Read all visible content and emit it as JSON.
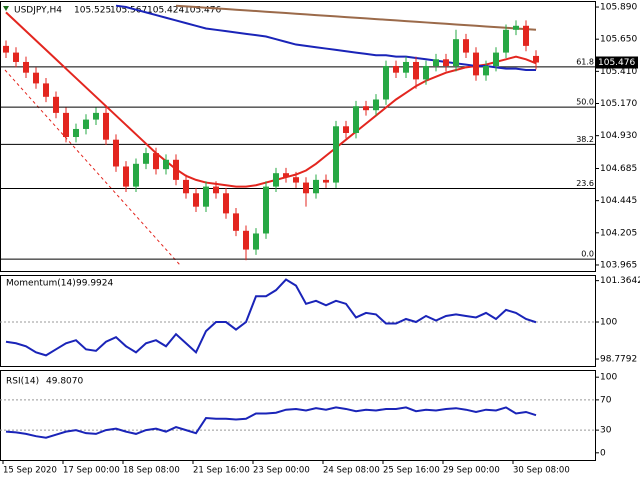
{
  "chart_data": [
    {
      "type": "candlestick",
      "title": "USDJPY,H4",
      "categories": [
        "15 Sep 2020",
        null,
        null,
        null,
        null,
        null,
        "17 Sep 00:00",
        null,
        null,
        null,
        null,
        null,
        "18 Sep 08:00",
        null,
        null,
        null,
        null,
        null,
        null,
        "21 Sep 16:00",
        null,
        null,
        null,
        null,
        null,
        "23 Sep 00:00",
        null,
        null,
        null,
        null,
        null,
        null,
        "24 Sep 08:00",
        null,
        null,
        null,
        null,
        null,
        "25 Sep 16:00",
        null,
        null,
        null,
        null,
        null,
        "29 Sep 00:00",
        null,
        null,
        null,
        null,
        null,
        null,
        "30 Sep 08:00",
        null,
        null
      ],
      "open": [
        105.6,
        105.55,
        105.48,
        105.4,
        105.32,
        105.22,
        105.1,
        104.92,
        104.98,
        105.05,
        105.1,
        104.9,
        104.7,
        104.55,
        104.72,
        104.8,
        104.68,
        104.75,
        104.6,
        104.5,
        104.4,
        104.55,
        104.5,
        104.35,
        104.22,
        104.08,
        104.2,
        104.55,
        104.65,
        104.62,
        104.58,
        104.5,
        104.6,
        104.58,
        105.0,
        104.95,
        105.15,
        105.12,
        105.2,
        105.45,
        105.4,
        105.48,
        105.35,
        105.45,
        105.5,
        105.45,
        105.65,
        105.55,
        105.38,
        105.45,
        105.55,
        105.72,
        105.75,
        105.525
      ],
      "high": [
        105.64,
        105.59,
        105.52,
        105.44,
        105.36,
        105.26,
        105.14,
        105.02,
        105.09,
        105.14,
        105.14,
        104.94,
        104.74,
        104.76,
        104.84,
        104.84,
        104.79,
        104.79,
        104.64,
        104.54,
        104.59,
        104.59,
        104.54,
        104.39,
        104.26,
        104.24,
        104.59,
        104.69,
        104.69,
        104.66,
        104.62,
        104.64,
        104.64,
        105.04,
        105.04,
        105.19,
        105.19,
        105.24,
        105.49,
        105.49,
        105.52,
        105.52,
        105.49,
        105.54,
        105.54,
        105.72,
        105.69,
        105.59,
        105.49,
        105.59,
        105.76,
        105.79,
        105.79,
        105.567
      ],
      "low": [
        105.51,
        105.44,
        105.36,
        105.28,
        105.18,
        105.06,
        104.88,
        104.88,
        104.94,
        105.01,
        104.86,
        104.66,
        104.51,
        104.51,
        104.68,
        104.64,
        104.64,
        104.56,
        104.46,
        104.36,
        104.36,
        104.46,
        104.31,
        104.18,
        104.0,
        104.04,
        104.16,
        104.51,
        104.58,
        104.54,
        104.4,
        104.46,
        104.54,
        104.54,
        104.91,
        104.91,
        105.08,
        105.08,
        105.16,
        105.36,
        105.36,
        105.28,
        105.31,
        105.41,
        105.41,
        105.41,
        105.51,
        105.34,
        105.34,
        105.41,
        105.51,
        105.68,
        105.56,
        105.424
      ],
      "close": [
        105.55,
        105.48,
        105.4,
        105.32,
        105.22,
        105.1,
        104.92,
        104.98,
        105.05,
        105.1,
        104.9,
        104.7,
        104.55,
        104.72,
        104.8,
        104.68,
        104.75,
        104.6,
        104.5,
        104.4,
        104.55,
        104.5,
        104.35,
        104.22,
        104.08,
        104.2,
        104.55,
        104.65,
        104.62,
        104.58,
        104.5,
        104.6,
        104.58,
        105.0,
        104.95,
        105.15,
        105.12,
        105.2,
        105.45,
        105.4,
        105.48,
        105.35,
        105.45,
        105.5,
        105.45,
        105.65,
        105.55,
        105.38,
        105.45,
        105.55,
        105.72,
        105.75,
        105.6,
        105.476
      ],
      "up_color": "#27a844",
      "down_color": "#e3261f",
      "moving_averages": [
        {
          "color": "#e3261f",
          "values": [
            105.85,
            105.78,
            105.71,
            105.64,
            105.57,
            105.5,
            105.43,
            105.36,
            105.29,
            105.22,
            105.15,
            105.08,
            105.01,
            104.94,
            104.87,
            104.8,
            104.74,
            104.68,
            104.63,
            104.6,
            104.58,
            104.57,
            104.56,
            104.55,
            104.55,
            104.56,
            104.58,
            104.6,
            104.62,
            104.64,
            104.67,
            104.72,
            104.78,
            104.84,
            104.9,
            104.96,
            105.02,
            105.08,
            105.14,
            105.2,
            105.25,
            105.3,
            105.34,
            105.37,
            105.4,
            105.42,
            105.44,
            105.45,
            105.46,
            105.48,
            105.5,
            105.52,
            105.5,
            105.47
          ]
        },
        {
          "color": "#1a24b8",
          "values": [
            null,
            null,
            null,
            null,
            null,
            null,
            null,
            null,
            null,
            null,
            null,
            105.9,
            105.89,
            105.87,
            105.85,
            105.83,
            105.81,
            105.79,
            105.77,
            105.75,
            105.73,
            105.72,
            105.71,
            105.7,
            105.69,
            105.68,
            105.67,
            105.65,
            105.63,
            105.61,
            105.6,
            105.59,
            105.58,
            105.57,
            105.56,
            105.55,
            105.54,
            105.53,
            105.53,
            105.52,
            105.52,
            105.51,
            105.5,
            105.49,
            105.48,
            105.47,
            105.46,
            105.45,
            105.45,
            105.44,
            105.43,
            105.43,
            105.42,
            105.42
          ]
        },
        {
          "color": "#9b6a4a",
          "values": [
            null,
            null,
            null,
            null,
            null,
            null,
            null,
            null,
            null,
            null,
            null,
            null,
            null,
            null,
            null,
            null,
            null,
            105.9,
            105.895,
            105.89,
            105.885,
            105.88,
            105.875,
            105.87,
            105.865,
            105.86,
            105.855,
            105.85,
            105.845,
            105.84,
            105.835,
            105.83,
            105.825,
            105.82,
            105.815,
            105.81,
            105.805,
            105.8,
            105.795,
            105.79,
            105.785,
            105.78,
            105.775,
            105.77,
            105.765,
            105.76,
            105.755,
            105.75,
            105.745,
            105.74,
            105.735,
            105.73,
            105.725,
            105.72
          ]
        }
      ],
      "fib_levels": [
        {
          "value": 105.443,
          "label": "61.8"
        },
        {
          "value": 105.143,
          "label": "50.0"
        },
        {
          "value": 104.865,
          "label": "38.2"
        },
        {
          "value": 104.536,
          "label": "23.6"
        },
        {
          "value": 104.009,
          "label": "0.0"
        }
      ],
      "ylim": [
        103.92,
        105.935
      ],
      "yticks": [
        {
          "value": 105.89,
          "label": "105.890"
        },
        {
          "value": 105.65,
          "label": "105.650"
        },
        {
          "value": 105.41,
          "label": "105.410"
        },
        {
          "value": 105.17,
          "label": "105.170"
        },
        {
          "value": 104.93,
          "label": "104.930"
        },
        104.685,
        104.445,
        104.205,
        103.965
      ]
    },
    {
      "type": "line",
      "title": "Momentum(14)",
      "color": "#1a24b8",
      "values": [
        99.35,
        99.3,
        99.2,
        99.0,
        98.9,
        99.1,
        99.3,
        99.4,
        99.1,
        99.05,
        99.35,
        99.5,
        99.2,
        99.0,
        99.3,
        99.4,
        99.2,
        99.6,
        99.3,
        99.0,
        99.7,
        100.0,
        100.0,
        99.75,
        100.0,
        100.85,
        100.85,
        101.05,
        101.4,
        101.2,
        100.6,
        100.7,
        100.55,
        100.7,
        100.6,
        100.15,
        100.3,
        100.25,
        99.95,
        99.95,
        100.1,
        100.0,
        100.2,
        100.05,
        100.2,
        100.25,
        100.2,
        100.15,
        100.3,
        100.1,
        100.4,
        100.3,
        100.1,
        99.9924
      ],
      "ylim": [
        98.55,
        101.55
      ],
      "yticks": [
        101.3642,
        100,
        98.7792
      ],
      "levels": [
        100
      ]
    },
    {
      "type": "line",
      "title": "RSI(14)",
      "color": "#1a24b8",
      "current_label": "49.8070",
      "values": [
        28,
        27,
        25,
        22,
        20,
        24,
        28,
        30,
        26,
        25,
        30,
        32,
        28,
        25,
        30,
        32,
        28,
        34,
        30,
        26,
        46,
        45,
        45,
        44,
        45,
        52,
        52,
        53,
        57,
        58,
        56,
        59,
        57,
        60,
        58,
        55,
        57,
        56,
        58,
        58,
        60,
        55,
        57,
        56,
        58,
        59,
        57,
        54,
        57,
        56,
        60,
        52,
        54,
        49.807
      ],
      "ylim": [
        -9.5,
        109.5
      ],
      "yticks": [
        100,
        70,
        30,
        0
      ],
      "levels": [
        70,
        30
      ]
    }
  ]
}
